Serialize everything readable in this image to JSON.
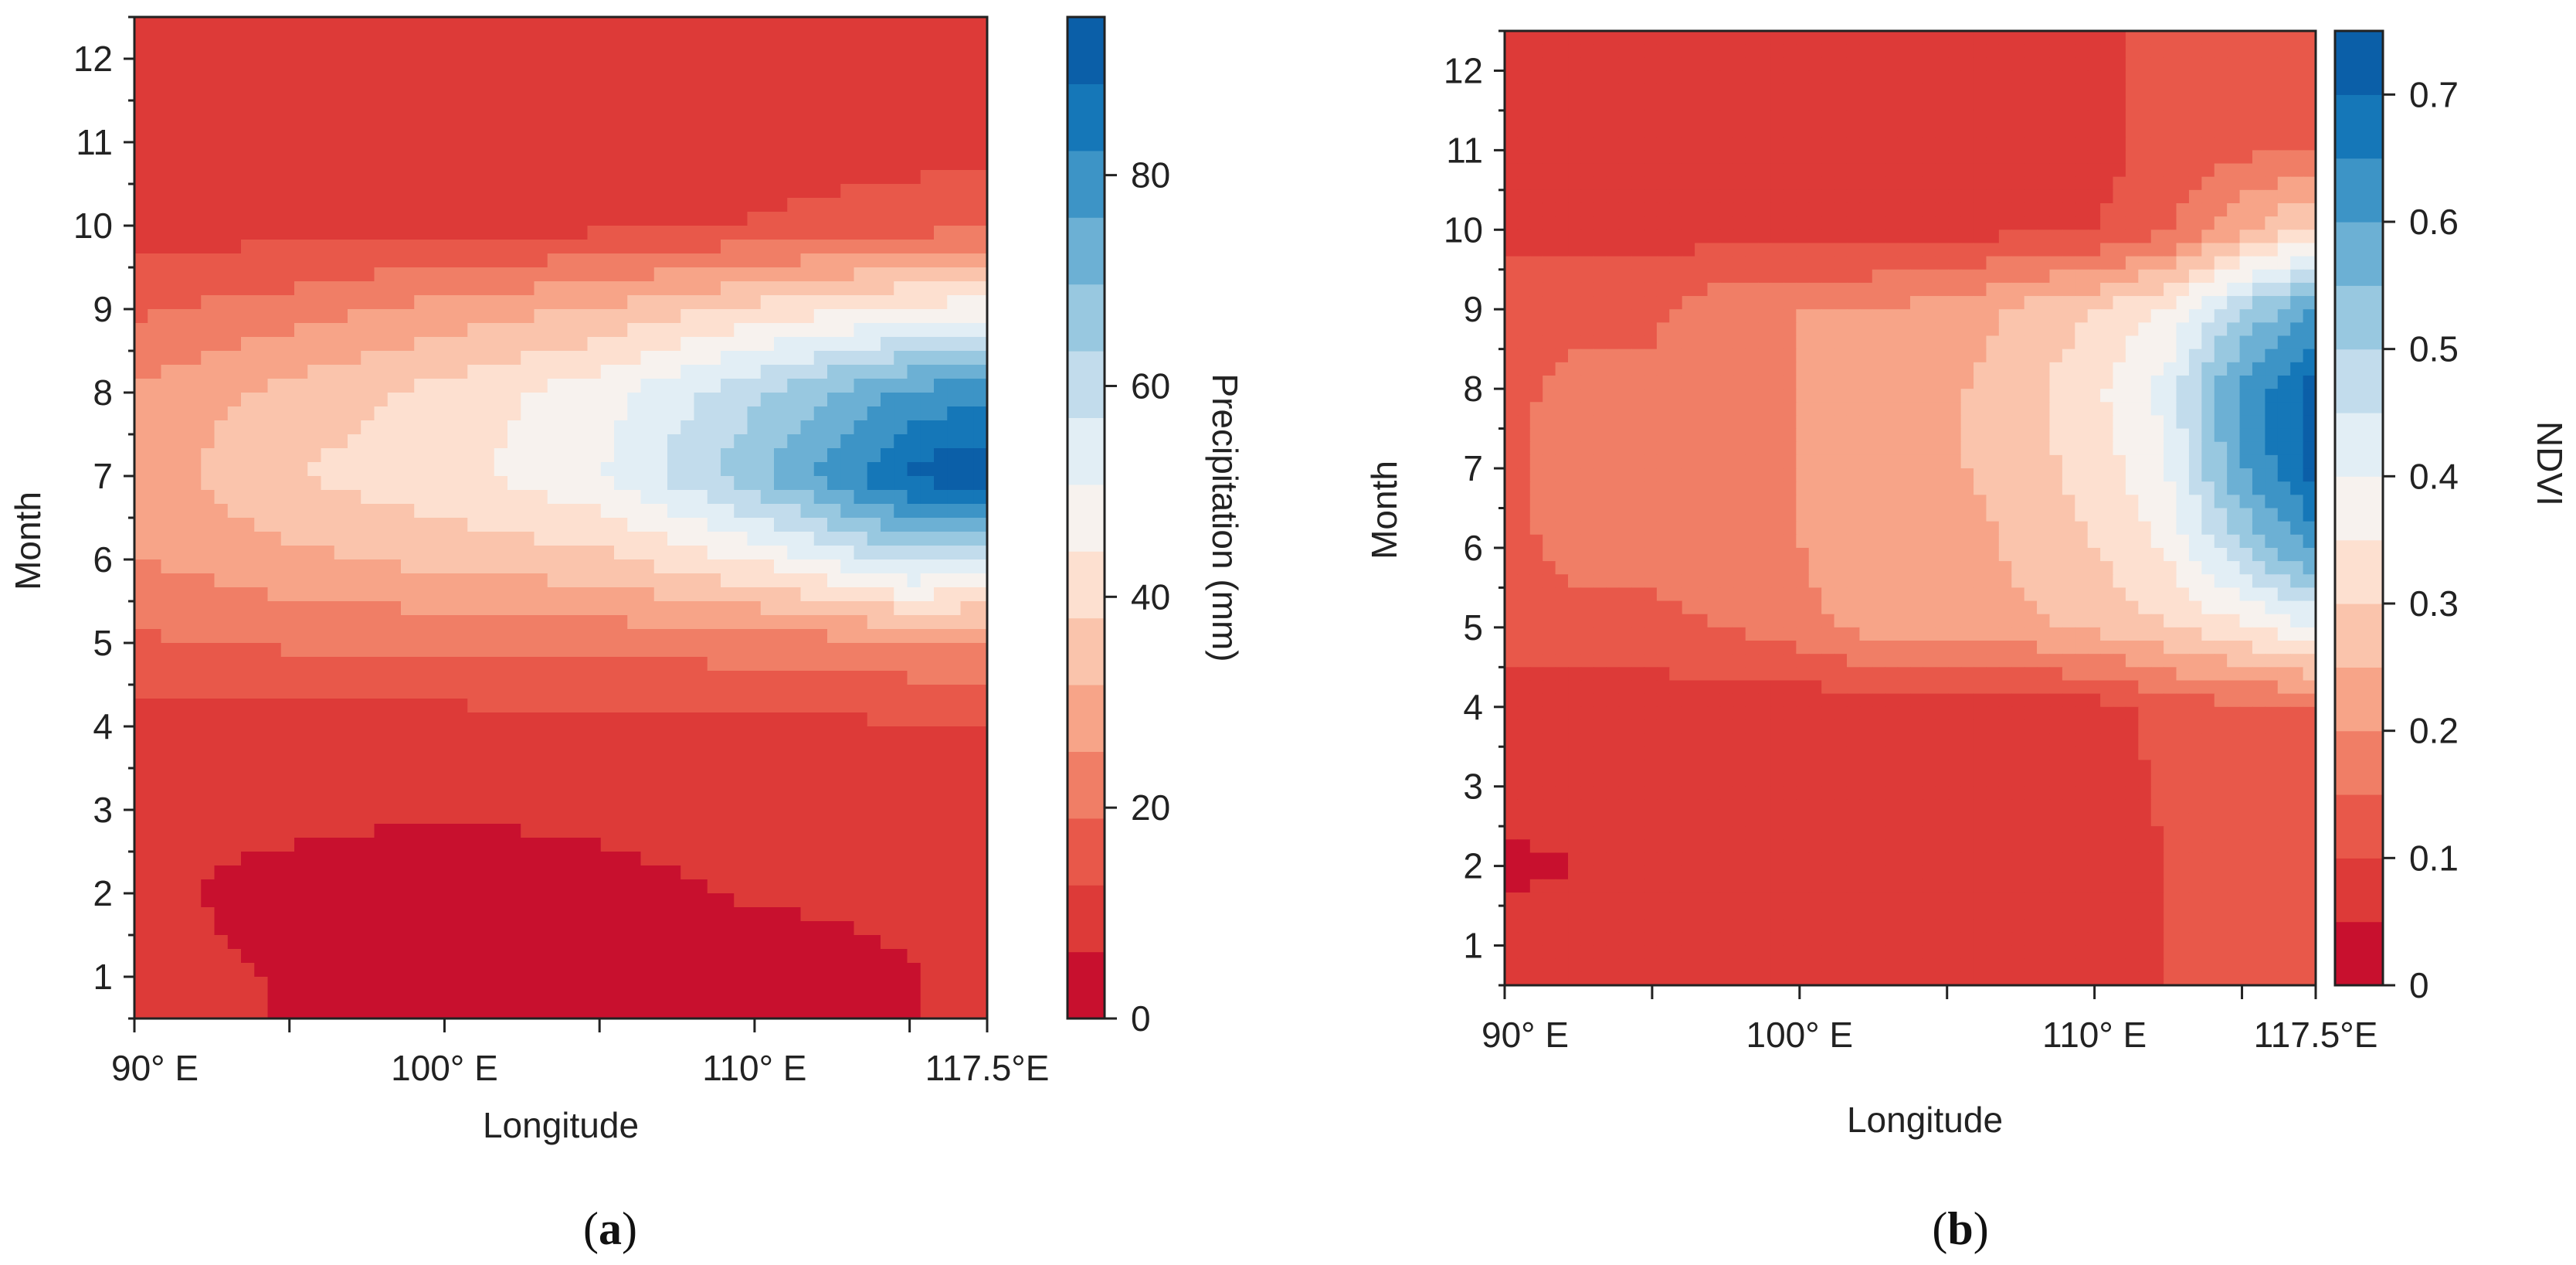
{
  "colors": {
    "scale": [
      "#c8102e",
      "#dd3a38",
      "#e8584a",
      "#f07e66",
      "#f7a488",
      "#fac4ac",
      "#fde0d0",
      "#f7f2ee",
      "#e2eef5",
      "#c2dcec",
      "#98c8e0",
      "#6cb0d4",
      "#3d94c6",
      "#1577b8",
      "#0b5fa8"
    ],
    "axis": "#222222"
  },
  "chart_data": [
    {
      "type": "heatmap",
      "panel_label": "a",
      "xlabel": "Longitude",
      "ylabel": "Month",
      "xlim": [
        90,
        117.5
      ],
      "ylim": [
        0.5,
        12.5
      ],
      "x_ticks": [
        90,
        100,
        110,
        117.5
      ],
      "x_tick_labels": [
        "90° E",
        "100° E",
        "110° E",
        "117.5°E"
      ],
      "y_ticks": [
        1,
        2,
        3,
        4,
        5,
        6,
        7,
        8,
        9,
        10,
        11,
        12
      ],
      "y_tick_labels": [
        "1",
        "2",
        "3",
        "4",
        "5",
        "6",
        "7",
        "8",
        "9",
        "10",
        "11",
        "12"
      ],
      "colorbar": {
        "label": "Precipitation (mm)",
        "range": [
          0,
          95
        ],
        "ticks": [
          0,
          20,
          40,
          60,
          80
        ],
        "tick_labels": [
          "0",
          "20",
          "40",
          "60",
          "80"
        ]
      },
      "x": [
        90,
        95,
        100,
        105,
        110,
        115,
        117.5
      ],
      "months": [
        1,
        2,
        3,
        4,
        5,
        6,
        7,
        8,
        9,
        10,
        11,
        12
      ],
      "values": [
        [
          8,
          6,
          4,
          3,
          2,
          6,
          8
        ],
        [
          8,
          4,
          2,
          4,
          7,
          8,
          8
        ],
        [
          8,
          8,
          7,
          8,
          9,
          9,
          9
        ],
        [
          10,
          10,
          10,
          11,
          11,
          12,
          12
        ],
        [
          18,
          20,
          20,
          21,
          22,
          24,
          25
        ],
        [
          25,
          30,
          34,
          36,
          45,
          60,
          55
        ],
        [
          28,
          38,
          42,
          50,
          68,
          90,
          95
        ],
        [
          26,
          34,
          40,
          48,
          62,
          78,
          80
        ],
        [
          18,
          22,
          28,
          32,
          40,
          46,
          48
        ],
        [
          10,
          10,
          10,
          11,
          13,
          16,
          18
        ],
        [
          10,
          10,
          10,
          10,
          10,
          10,
          11
        ],
        [
          9,
          9,
          9,
          9,
          9,
          9,
          9
        ]
      ]
    },
    {
      "type": "heatmap",
      "panel_label": "b",
      "xlabel": "Longitude",
      "ylabel": "Month",
      "xlim": [
        90,
        117.5
      ],
      "ylim": [
        0.5,
        12.5
      ],
      "x_ticks": [
        90,
        100,
        110,
        117.5
      ],
      "x_tick_labels": [
        "90° E",
        "100° E",
        "110° E",
        "117.5°E"
      ],
      "y_ticks": [
        1,
        2,
        3,
        4,
        5,
        6,
        7,
        8,
        9,
        10,
        11,
        12
      ],
      "y_tick_labels": [
        "1",
        "2",
        "3",
        "4",
        "5",
        "6",
        "7",
        "8",
        "9",
        "10",
        "11",
        "12"
      ],
      "colorbar": {
        "label": "NDVI",
        "range": [
          0,
          0.75
        ],
        "ticks": [
          0,
          0.1,
          0.2,
          0.3,
          0.4,
          0.5,
          0.6,
          0.7
        ],
        "tick_labels": [
          "0",
          "0.1",
          "0.2",
          "0.3",
          "0.4",
          "0.5",
          "0.6",
          "0.7"
        ]
      },
      "x": [
        90,
        92.5,
        95,
        97.5,
        100,
        102.5,
        105,
        107.5,
        110,
        112.5,
        115,
        117.5
      ],
      "months": [
        1,
        2,
        3,
        4,
        5,
        6,
        7,
        8,
        9,
        10,
        11,
        12
      ],
      "values": [
        [
          0.07,
          0.07,
          0.07,
          0.07,
          0.07,
          0.07,
          0.07,
          0.07,
          0.07,
          0.1,
          0.11,
          0.12
        ],
        [
          0.04,
          0.05,
          0.07,
          0.07,
          0.07,
          0.07,
          0.07,
          0.07,
          0.07,
          0.1,
          0.12,
          0.12
        ],
        [
          0.07,
          0.07,
          0.07,
          0.07,
          0.07,
          0.07,
          0.07,
          0.07,
          0.07,
          0.11,
          0.12,
          0.13
        ],
        [
          0.07,
          0.07,
          0.07,
          0.07,
          0.07,
          0.07,
          0.07,
          0.07,
          0.08,
          0.12,
          0.14,
          0.15
        ],
        [
          0.12,
          0.14,
          0.14,
          0.15,
          0.18,
          0.22,
          0.22,
          0.24,
          0.26,
          0.3,
          0.34,
          0.4
        ],
        [
          0.14,
          0.16,
          0.16,
          0.18,
          0.2,
          0.24,
          0.22,
          0.26,
          0.3,
          0.36,
          0.5,
          0.62
        ],
        [
          0.14,
          0.18,
          0.16,
          0.18,
          0.2,
          0.22,
          0.24,
          0.28,
          0.32,
          0.4,
          0.6,
          0.72
        ],
        [
          0.14,
          0.16,
          0.16,
          0.2,
          0.2,
          0.22,
          0.24,
          0.28,
          0.34,
          0.42,
          0.62,
          0.72
        ],
        [
          0.13,
          0.14,
          0.14,
          0.18,
          0.2,
          0.2,
          0.22,
          0.26,
          0.3,
          0.36,
          0.5,
          0.6
        ],
        [
          0.08,
          0.08,
          0.08,
          0.08,
          0.08,
          0.08,
          0.08,
          0.09,
          0.1,
          0.14,
          0.24,
          0.32
        ],
        [
          0.07,
          0.07,
          0.07,
          0.07,
          0.07,
          0.07,
          0.07,
          0.07,
          0.08,
          0.12,
          0.14,
          0.15
        ],
        [
          0.07,
          0.07,
          0.07,
          0.07,
          0.07,
          0.07,
          0.07,
          0.07,
          0.08,
          0.12,
          0.14,
          0.15
        ]
      ]
    }
  ]
}
